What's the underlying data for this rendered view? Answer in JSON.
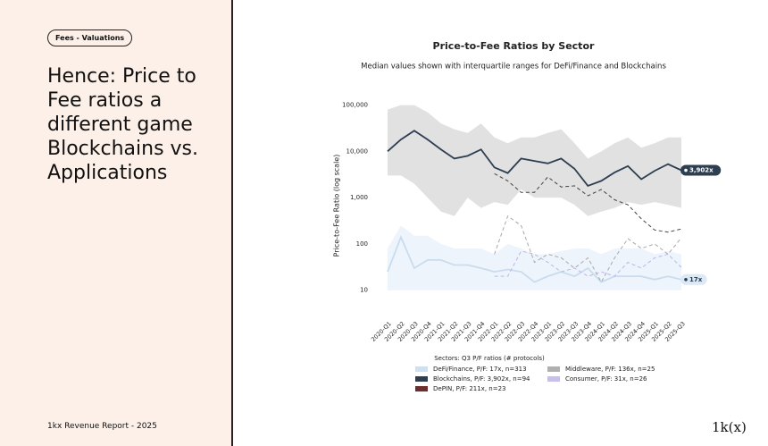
{
  "slide": {
    "tag": "Fees - Valuations",
    "heading_lines": [
      "Hence: Price to",
      "Fee ratios a",
      "different game",
      "Blockchains vs.",
      "Applications"
    ],
    "footer": "1kx Revenue Report  - 2025",
    "logo": "1k(x)"
  },
  "chart_data": {
    "type": "line",
    "title": "Price-to-Fee Ratios by Sector",
    "subtitle": "Median values shown with interquartile ranges for DeFi/Finance and Blockchains",
    "y_label": "Price-to-Fee Ratio (log scale)",
    "log_scale": true,
    "grid": false,
    "legend_title": "Sectors: Q3 P/F ratios (# protocols)",
    "legend_position": "bottom",
    "categories": [
      "2020-Q1",
      "2020-Q2",
      "2020-Q3",
      "2020-Q4",
      "2021-Q1",
      "2021-Q2",
      "2021-Q3",
      "2021-Q4",
      "2022-Q1",
      "2022-Q2",
      "2022-Q3",
      "2022-Q4",
      "2023-Q1",
      "2023-Q2",
      "2023-Q3",
      "2023-Q4",
      "2024-Q1",
      "2024-Q2",
      "2024-Q3",
      "2024-Q4",
      "2025-Q1",
      "2025-Q2",
      "2025-Q3"
    ],
    "ylim": [
      2.6,
      140000
    ],
    "yticks": [
      {
        "value": 100000,
        "label": "100,000"
      },
      {
        "value": 10000,
        "label": "10,000"
      },
      {
        "value": 1000,
        "label": "1,000"
      },
      100,
      10
    ],
    "series": [
      {
        "name": "DeFi/Finance, P/F: 17x, n=313",
        "color": "#cfe1f1",
        "line_color": "#c9dcef",
        "style": "solid",
        "values": [
          25,
          140,
          30,
          45,
          45,
          35,
          35,
          30,
          25,
          28,
          25,
          15,
          20,
          25,
          20,
          30,
          15,
          20,
          20,
          20,
          17,
          20,
          17
        ],
        "band_high": [
          80,
          250,
          150,
          150,
          100,
          80,
          80,
          80,
          60,
          100,
          80,
          60,
          60,
          70,
          80,
          80,
          60,
          80,
          80,
          80,
          60,
          70,
          60
        ],
        "band_low": [
          10,
          10,
          10,
          10,
          10,
          10,
          10,
          10,
          10,
          10,
          10,
          10,
          10,
          10,
          10,
          10,
          10,
          10,
          10,
          10,
          10,
          10,
          10
        ],
        "value_labels": [
          null,
          null,
          null,
          null,
          null,
          null,
          null,
          null,
          null,
          null,
          null,
          null,
          null,
          null,
          null,
          null,
          null,
          null,
          null,
          null,
          null,
          null,
          "17x"
        ]
      },
      {
        "name": "Blockchains, P/F: 3,902x, n=94",
        "color": "#2d3e50",
        "line_color": "#2d3e50",
        "style": "solid",
        "values": [
          10000,
          18000,
          28000,
          18000,
          11000,
          7000,
          8000,
          11000,
          4500,
          3400,
          7000,
          6200,
          5500,
          7000,
          4200,
          1800,
          2300,
          3500,
          4800,
          2500,
          3800,
          5300,
          3902
        ],
        "band_high": [
          80000,
          100000,
          100000,
          70000,
          40000,
          30000,
          25000,
          40000,
          20000,
          15000,
          20000,
          20000,
          25000,
          30000,
          15000,
          7000,
          10000,
          15000,
          20000,
          12000,
          15000,
          20000,
          20000
        ],
        "band_low": [
          3000,
          3000,
          2000,
          1000,
          500,
          400,
          1000,
          600,
          800,
          700,
          1500,
          1000,
          1000,
          1000,
          700,
          400,
          500,
          600,
          800,
          700,
          800,
          700,
          600
        ],
        "value_labels": [
          null,
          null,
          null,
          null,
          null,
          null,
          null,
          null,
          null,
          null,
          null,
          null,
          null,
          null,
          null,
          null,
          null,
          null,
          null,
          null,
          null,
          null,
          "3,902x"
        ]
      },
      {
        "name": "DePIN, P/F: 211x, n=23",
        "color": "#6b2e2e",
        "line_color": "#4a4040",
        "style": "dashed",
        "values": [
          null,
          null,
          null,
          null,
          null,
          null,
          null,
          null,
          3300,
          2300,
          1300,
          1300,
          2800,
          1700,
          1800,
          1100,
          1500,
          900,
          700,
          350,
          200,
          180,
          211
        ]
      },
      {
        "name": "Middleware, P/F: 136x, n=25",
        "color": "#b0b0b0",
        "line_color": "#a8a8a8",
        "style": "dashed",
        "values": [
          null,
          null,
          null,
          null,
          null,
          null,
          null,
          null,
          60,
          400,
          250,
          40,
          60,
          50,
          30,
          50,
          15,
          50,
          130,
          80,
          100,
          60,
          136
        ]
      },
      {
        "name": "Consumer, P/F: 31x, n=26",
        "color": "#c5c0ec",
        "line_color": "#bdb6e6",
        "style": "dashed",
        "values": [
          null,
          null,
          null,
          null,
          null,
          null,
          null,
          null,
          20,
          20,
          70,
          60,
          40,
          25,
          30,
          20,
          25,
          20,
          40,
          30,
          50,
          60,
          31
        ]
      }
    ]
  }
}
